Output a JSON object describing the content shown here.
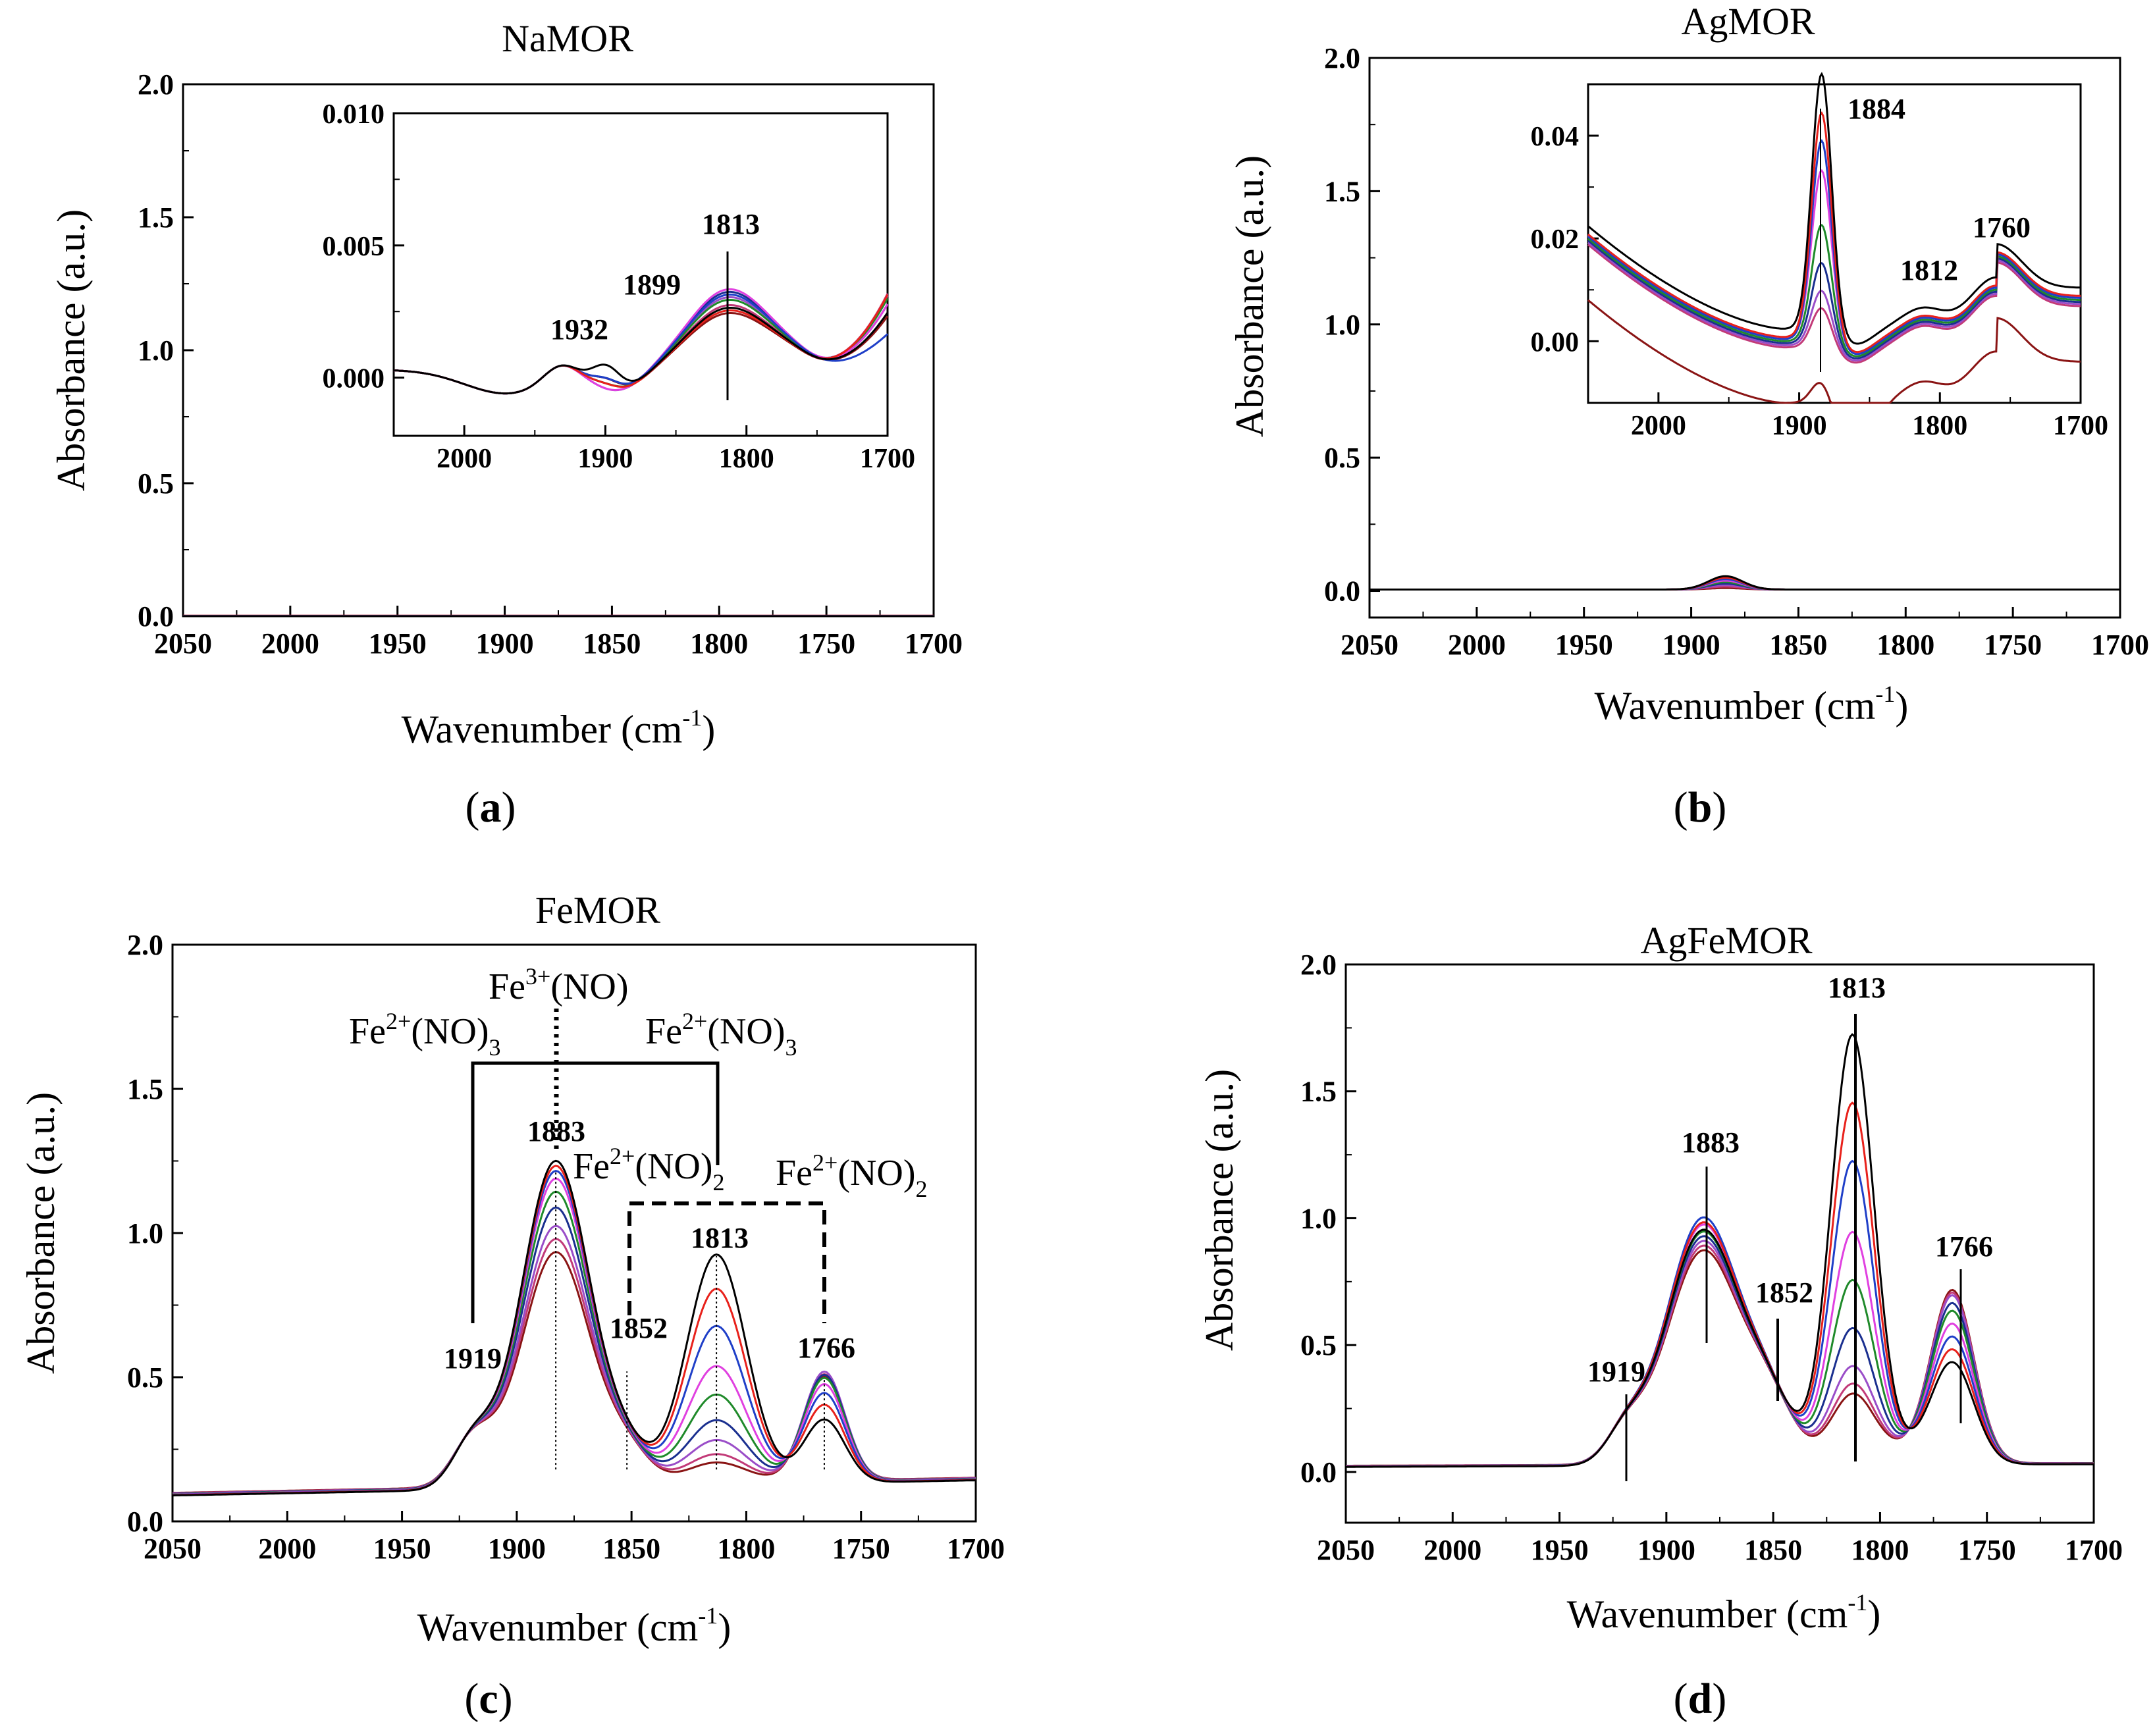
{
  "figure": {
    "panels": [
      {
        "id": "a",
        "label": "a",
        "title": "NaMOR"
      },
      {
        "id": "b",
        "label": "b",
        "title": "AgMOR"
      },
      {
        "id": "c",
        "label": "c",
        "title": "FeMOR"
      },
      {
        "id": "d",
        "label": "d",
        "title": "AgFeMOR"
      }
    ],
    "xlabel_main": "Wavenumber (cm",
    "xlabel_sup": "-1",
    "xlabel_close": ")",
    "ylabel": "Absorbance (a.u.)",
    "series_colors": [
      "#000000",
      "#e8211b",
      "#1f3fc8",
      "#e040e0",
      "#1f8a2a",
      "#1a2f8f",
      "#9a4dc8",
      "#c23a78",
      "#8a1414"
    ]
  },
  "chart_data": [
    {
      "id": "a",
      "type": "line",
      "title": "NaMOR",
      "xlabel": "Wavenumber (cm-1)",
      "ylabel": "Absorbance (a.u.)",
      "xlim": [
        2050,
        1700
      ],
      "ylim": [
        0,
        2.0
      ],
      "xticks": [
        "2050",
        "2000",
        "1950",
        "1900",
        "1850",
        "1800",
        "1750",
        "1700"
      ],
      "yticks": [
        "0.0",
        "0.5",
        "1.0",
        "1.5",
        "2.0"
      ],
      "series_count": 9,
      "main_baseline": 0.0,
      "inset": {
        "xlim": [
          2050,
          1700
        ],
        "ylim": [
          -0.0025,
          0.01
        ],
        "xticks": [
          "2000",
          "1900",
          "1800",
          "1700"
        ],
        "yticks": [
          "0.000",
          "0.005",
          "0.010"
        ],
        "peaks": [
          "1932",
          "1899",
          "1813"
        ]
      }
    },
    {
      "id": "b",
      "type": "line",
      "title": "AgMOR",
      "xlabel": "Wavenumber (cm-1)",
      "ylabel": "Absorbance (a.u.)",
      "xlim": [
        2050,
        1700
      ],
      "ylim": [
        -0.1,
        2.0
      ],
      "xticks": [
        "2050",
        "2000",
        "1950",
        "1900",
        "1850",
        "1800",
        "1750",
        "1700"
      ],
      "yticks": [
        "0.0",
        "0.5",
        "1.0",
        "1.5",
        "2.0"
      ],
      "series_count": 9,
      "main_peak": {
        "x": 1884,
        "max": 0.05
      },
      "inset": {
        "xlim": [
          2050,
          1700
        ],
        "ylim": [
          -0.012,
          0.05
        ],
        "xticks": [
          "2000",
          "1900",
          "1800",
          "1700"
        ],
        "yticks": [
          "0.00",
          "0.02",
          "0.04"
        ],
        "peaks": [
          "1884",
          "1812",
          "1760"
        ],
        "peak_heights_1884": [
          0.05,
          0.044,
          0.039,
          0.033,
          0.023,
          0.016,
          0.011,
          0.008,
          0.005
        ]
      }
    },
    {
      "id": "c",
      "type": "line",
      "title": "FeMOR",
      "xlabel": "Wavenumber (cm-1)",
      "ylabel": "Absorbance (a.u.)",
      "xlim": [
        2050,
        1700
      ],
      "ylim": [
        0,
        2.0
      ],
      "xticks": [
        "2050",
        "2000",
        "1950",
        "1900",
        "1850",
        "1800",
        "1750",
        "1700"
      ],
      "yticks": [
        "0.0",
        "0.5",
        "1.0",
        "1.5",
        "2.0"
      ],
      "series_count": 9,
      "peaks": [
        "1919",
        "1883",
        "1852",
        "1813",
        "1766"
      ],
      "peak_1883": [
        1.22,
        1.2,
        1.18,
        1.15,
        1.1,
        1.04,
        0.97,
        0.92,
        0.87
      ],
      "peak_1813": [
        0.92,
        0.8,
        0.67,
        0.53,
        0.43,
        0.34,
        0.27,
        0.22,
        0.19
      ],
      "peak_1766": [
        0.35,
        0.4,
        0.44,
        0.47,
        0.49,
        0.5,
        0.51,
        0.5,
        0.49
      ],
      "assignments": {
        "fe2_no3": "Fe2+(NO)3",
        "fe3_no": "Fe3+(NO)",
        "fe2_no2": "Fe2+(NO)2"
      }
    },
    {
      "id": "d",
      "type": "line",
      "title": "AgFeMOR",
      "xlabel": "Wavenumber (cm-1)",
      "ylabel": "Absorbance (a.u.)",
      "xlim": [
        2050,
        1700
      ],
      "ylim": [
        -0.2,
        2.0
      ],
      "xticks": [
        "2050",
        "2000",
        "1950",
        "1900",
        "1850",
        "1800",
        "1750",
        "1700"
      ],
      "yticks": [
        "0.0",
        "0.5",
        "1.0",
        "1.5",
        "2.0"
      ],
      "series_count": 9,
      "peaks": [
        "1919",
        "1883",
        "1852",
        "1813",
        "1766"
      ],
      "peak_1883": [
        0.97,
        1.0,
        1.02,
        0.99,
        0.96,
        0.94,
        0.92,
        0.9,
        0.88
      ],
      "peak_1813": [
        1.72,
        1.45,
        1.22,
        0.94,
        0.75,
        0.56,
        0.41,
        0.34,
        0.3
      ],
      "peak_1766": [
        0.4,
        0.45,
        0.5,
        0.55,
        0.6,
        0.63,
        0.66,
        0.67,
        0.68
      ]
    }
  ],
  "labels": {
    "a": {
      "p1": "1932",
      "p2": "1899",
      "p3": "1813"
    },
    "b": {
      "p1": "1884",
      "p2": "1812",
      "p3": "1760"
    },
    "c": {
      "p1": "1919",
      "p2": "1883",
      "p3": "1852",
      "p4": "1813",
      "p5": "1766",
      "fe": "Fe",
      "sup2": "2+",
      "sup3": "3+",
      "no": "(NO)",
      "sub3": "3",
      "sub2": "2"
    },
    "d": {
      "p1": "1919",
      "p2": "1883",
      "p3": "1852",
      "p4": "1813",
      "p5": "1766"
    }
  }
}
